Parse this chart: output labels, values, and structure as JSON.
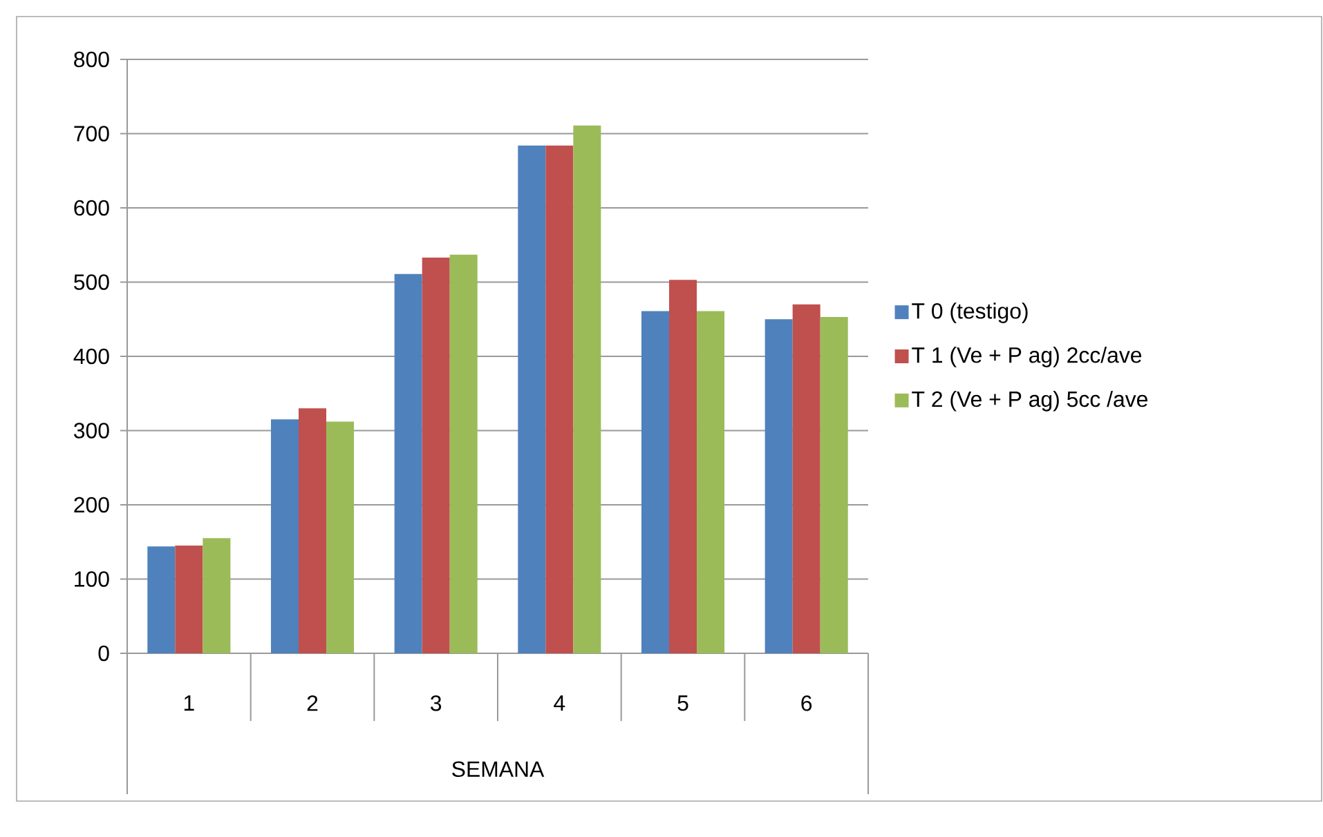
{
  "chart_data": {
    "type": "bar",
    "xlabel": "SEMANA",
    "categories": [
      "1",
      "2",
      "3",
      "4",
      "5",
      "6"
    ],
    "series": [
      {
        "name": "T 0 (testigo)",
        "color": "#4f81bd",
        "values": [
          144,
          315,
          511,
          684,
          461,
          450
        ]
      },
      {
        "name": "T 1 (Ve + P ag) 2cc/ave",
        "color": "#c0504d",
        "values": [
          145,
          330,
          533,
          684,
          503,
          470
        ]
      },
      {
        "name": "T 2 (Ve + P ag) 5cc /ave",
        "color": "#9bbb59",
        "values": [
          155,
          312,
          537,
          711,
          461,
          453
        ]
      }
    ],
    "ylim": [
      0,
      800
    ],
    "yticks": [
      0,
      100,
      200,
      300,
      400,
      500,
      600,
      700,
      800
    ],
    "grid": "y",
    "legend": "right"
  }
}
